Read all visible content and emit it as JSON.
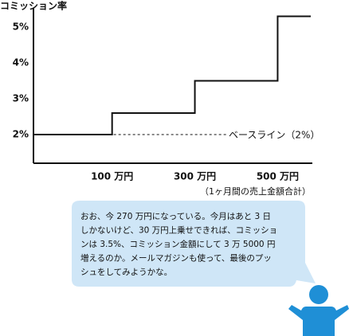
{
  "chart_data": {
    "type": "step",
    "y_label": "コミッション率",
    "x_label": "（1ヶ月間の売上金額合計）",
    "x": [
      -90,
      100,
      300,
      500
    ],
    "values": [
      2,
      2.6,
      3.5,
      5.3
    ],
    "color": "#111111",
    "xlim": [
      -90,
      580
    ],
    "ylim": [
      1.2,
      5.4
    ],
    "xticks": [
      {
        "value": 100,
        "label": "100 万円"
      },
      {
        "value": 300,
        "label": "300 万円"
      },
      {
        "value": 500,
        "label": "500 万円"
      }
    ],
    "yticks": [
      {
        "value": 2,
        "label": "2%"
      },
      {
        "value": 3,
        "label": "3%"
      },
      {
        "value": 4,
        "label": "4%"
      },
      {
        "value": 5,
        "label": "5%"
      }
    ],
    "baseline": {
      "value": 2,
      "label": "ベースライン（2%）"
    }
  },
  "speech": {
    "lines": [
      "おお、今 270 万円になっている。今月はあと 3 日",
      "しかないけど、30 万円上乗せできれば、コミッショ",
      "ンは 3.5%、コミッション金額にして 3 万 5000 円",
      "増えるのか。メールマガジンも使って、最後のプッ",
      "シュをしてみようかな。"
    ]
  }
}
